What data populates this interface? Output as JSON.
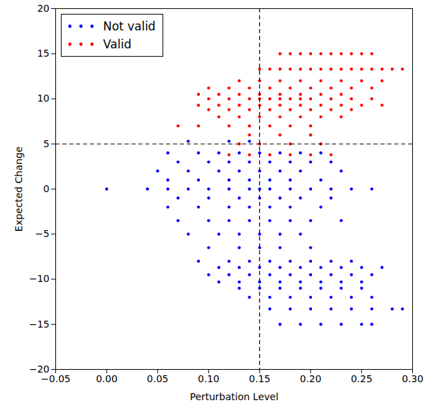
{
  "chart_data": {
    "type": "scatter",
    "x_label": "Perturbation Level",
    "y_label": "Expected Change",
    "xlim": [
      -0.05,
      0.3
    ],
    "ylim": [
      -20,
      20
    ],
    "xticks": [
      {
        "value": -0.05,
        "label": "−0.05"
      },
      {
        "value": 0.0,
        "label": "0.00"
      },
      {
        "value": 0.05,
        "label": "0.05"
      },
      {
        "value": 0.1,
        "label": "0.10"
      },
      {
        "value": 0.15,
        "label": "0.15"
      },
      {
        "value": 0.2,
        "label": "0.20"
      },
      {
        "value": 0.25,
        "label": "0.25"
      },
      {
        "value": 0.3,
        "label": "0.30"
      }
    ],
    "yticks": [
      -20,
      -15,
      -10,
      -5,
      0,
      5,
      10,
      15,
      20
    ],
    "grid": false,
    "legend": "upper left",
    "reference_lines": {
      "x": 0.15,
      "y": 5
    },
    "series": [
      {
        "name": "Not valid",
        "color": "#0000ff",
        "marker": "o",
        "x": [
          0.08,
          0.12,
          0.14,
          0.06,
          0.09,
          0.11,
          0.13,
          0.15,
          0.17,
          0.19,
          0.21,
          0.07,
          0.1,
          0.12,
          0.14,
          0.16,
          0.18,
          0.2,
          0.22,
          0.05,
          0.08,
          0.11,
          0.13,
          0.15,
          0.17,
          0.19,
          0.23,
          0.06,
          0.09,
          0.12,
          0.14,
          0.16,
          0.18,
          0.21,
          0.0,
          0.04,
          0.06,
          0.08,
          0.1,
          0.12,
          0.14,
          0.15,
          0.16,
          0.18,
          0.2,
          0.22,
          0.24,
          0.26,
          0.07,
          0.1,
          0.13,
          0.15,
          0.17,
          0.19,
          0.22,
          0.06,
          0.09,
          0.12,
          0.14,
          0.16,
          0.18,
          0.21,
          0.07,
          0.1,
          0.12,
          0.14,
          0.16,
          0.18,
          0.2,
          0.23,
          0.08,
          0.11,
          0.13,
          0.15,
          0.17,
          0.19,
          0.1,
          0.13,
          0.15,
          0.17,
          0.2,
          0.09,
          0.12,
          0.14,
          0.16,
          0.18,
          0.2,
          0.22,
          0.24,
          0.11,
          0.13,
          0.15,
          0.17,
          0.19,
          0.21,
          0.23,
          0.25,
          0.27,
          0.1,
          0.12,
          0.14,
          0.16,
          0.18,
          0.2,
          0.22,
          0.24,
          0.26,
          0.11,
          0.13,
          0.15,
          0.17,
          0.19,
          0.21,
          0.23,
          0.25,
          0.13,
          0.15,
          0.17,
          0.19,
          0.21,
          0.23,
          0.25,
          0.14,
          0.16,
          0.18,
          0.2,
          0.22,
          0.24,
          0.26,
          0.16,
          0.18,
          0.2,
          0.22,
          0.24,
          0.26,
          0.28,
          0.29,
          0.17,
          0.19,
          0.21,
          0.23,
          0.25,
          0.26
        ],
        "values": [
          5.3,
          5.3,
          5.3,
          4,
          4,
          4,
          4,
          4,
          4,
          4,
          4,
          3,
          3,
          3,
          3,
          3,
          3,
          3,
          3,
          2,
          2,
          2,
          2,
          2,
          2,
          2,
          2,
          1,
          1,
          1,
          1,
          1,
          1,
          1,
          0,
          0,
          0,
          0,
          0,
          0,
          0,
          0,
          0,
          0,
          0,
          0,
          0,
          0,
          -1,
          -1,
          -1,
          -1,
          -1,
          -1,
          -1,
          -2,
          -2,
          -2,
          -2,
          -2,
          -2,
          -2,
          -3.5,
          -3.5,
          -3.5,
          -3.5,
          -3.5,
          -3.5,
          -3.5,
          -3.5,
          -5,
          -5,
          -5,
          -5,
          -5,
          -5,
          -6.5,
          -6.5,
          -6.5,
          -6.5,
          -6.5,
          -8,
          -8,
          -8,
          -8,
          -8,
          -8,
          -8,
          -8,
          -8.7,
          -8.7,
          -8.7,
          -8.7,
          -8.7,
          -8.7,
          -8.7,
          -8.7,
          -8.7,
          -9.5,
          -9.5,
          -9.5,
          -9.5,
          -9.5,
          -9.5,
          -9.5,
          -9.5,
          -9.5,
          -10.3,
          -10.3,
          -10.3,
          -10.3,
          -10.3,
          -10.3,
          -10.3,
          -10.3,
          -11,
          -11,
          -11,
          -11,
          -11,
          -11,
          -11,
          -12,
          -12,
          -12,
          -12,
          -12,
          -12,
          -12,
          -13.3,
          -13.3,
          -13.3,
          -13.3,
          -13.3,
          -13.3,
          -13.3,
          -13.3,
          -15,
          -15,
          -15,
          -15,
          -15,
          -15
        ]
      },
      {
        "name": "Valid",
        "color": "#ff0000",
        "marker": "o",
        "x": [
          0.17,
          0.18,
          0.19,
          0.2,
          0.21,
          0.22,
          0.23,
          0.24,
          0.25,
          0.26,
          0.15,
          0.16,
          0.17,
          0.18,
          0.19,
          0.2,
          0.21,
          0.22,
          0.23,
          0.24,
          0.25,
          0.26,
          0.27,
          0.28,
          0.29,
          0.13,
          0.15,
          0.17,
          0.19,
          0.21,
          0.23,
          0.25,
          0.27,
          0.1,
          0.12,
          0.14,
          0.16,
          0.18,
          0.2,
          0.22,
          0.24,
          0.26,
          0.09,
          0.11,
          0.13,
          0.15,
          0.17,
          0.19,
          0.21,
          0.23,
          0.1,
          0.12,
          0.14,
          0.15,
          0.16,
          0.17,
          0.18,
          0.19,
          0.2,
          0.22,
          0.24,
          0.26,
          0.09,
          0.11,
          0.13,
          0.15,
          0.17,
          0.19,
          0.21,
          0.23,
          0.25,
          0.27,
          0.1,
          0.12,
          0.14,
          0.16,
          0.18,
          0.2,
          0.22,
          0.24,
          0.11,
          0.13,
          0.15,
          0.17,
          0.19,
          0.21,
          0.23,
          0.07,
          0.09,
          0.12,
          0.14,
          0.16,
          0.18,
          0.2,
          0.14,
          0.17,
          0.2,
          0.13,
          0.15,
          0.18,
          0.21,
          0.12,
          0.14,
          0.16,
          0.18,
          0.2,
          0.22
        ],
        "values": [
          15,
          15,
          15,
          15,
          15,
          15,
          15,
          15,
          15,
          15,
          13.3,
          13.3,
          13.3,
          13.3,
          13.3,
          13.3,
          13.3,
          13.3,
          13.3,
          13.3,
          13.3,
          13.3,
          13.3,
          13.3,
          13.3,
          12,
          12,
          12,
          12,
          12,
          12,
          12,
          12,
          11.2,
          11.2,
          11.2,
          11.2,
          11.2,
          11.2,
          11.2,
          11.2,
          11.2,
          10.5,
          10.5,
          10.5,
          10.5,
          10.5,
          10.5,
          10.5,
          10.5,
          10,
          10,
          10,
          10,
          10,
          10,
          10,
          10,
          10,
          10,
          10,
          10,
          9.3,
          9.3,
          9.3,
          9.3,
          9.3,
          9.3,
          9.3,
          9.3,
          9.3,
          9.3,
          8.8,
          8.8,
          8.8,
          8.8,
          8.8,
          8.8,
          8.8,
          8.8,
          8,
          8,
          8,
          8,
          8,
          8,
          8,
          7,
          7,
          7,
          7,
          7,
          7,
          7,
          6,
          6,
          6,
          5,
          5,
          5,
          5,
          3.8,
          3.8,
          3.8,
          3.8,
          3.8,
          3.8
        ]
      }
    ]
  }
}
